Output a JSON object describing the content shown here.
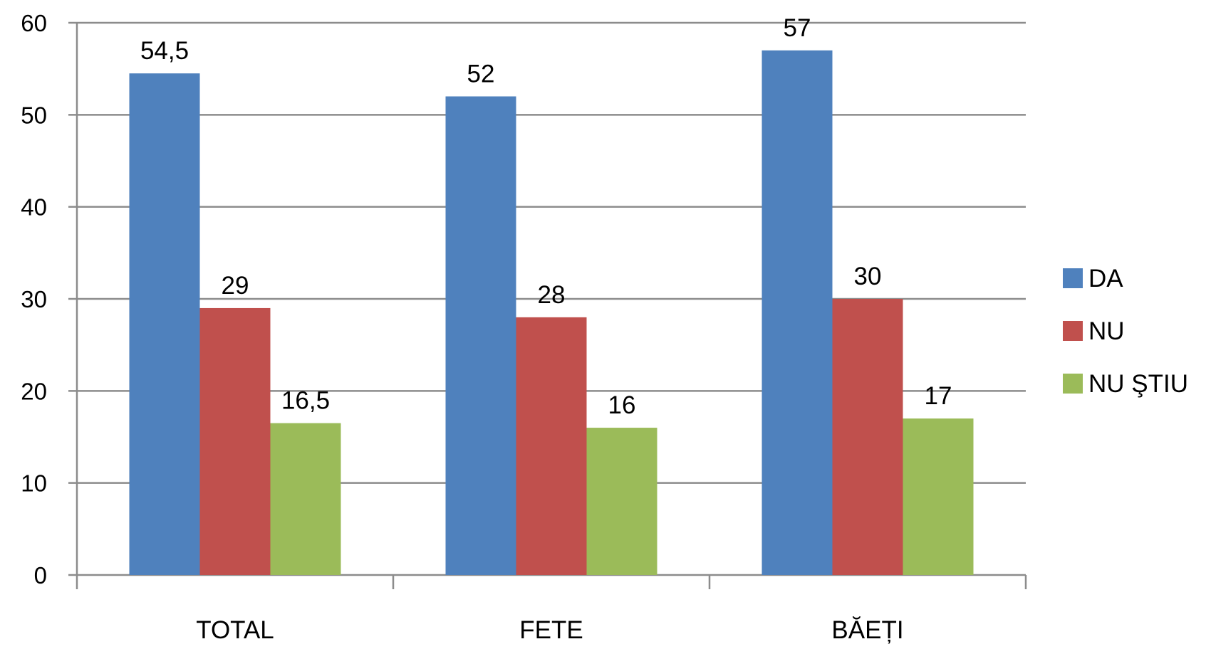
{
  "chart_data": {
    "type": "bar",
    "title": "",
    "xlabel": "",
    "ylabel": "",
    "categories": [
      "TOTAL",
      "FETE",
      "BĂEȚI"
    ],
    "series": [
      {
        "name": "DA",
        "values": [
          54.5,
          52,
          57
        ],
        "labels": [
          "54,5",
          "52",
          "57"
        ],
        "color": "#4F81BD"
      },
      {
        "name": "NU",
        "values": [
          29,
          28,
          30
        ],
        "labels": [
          "29",
          "28",
          "30"
        ],
        "color": "#C0504D"
      },
      {
        "name": "NU ŞTIU",
        "values": [
          16.5,
          16,
          17
        ],
        "labels": [
          "16,5",
          "16",
          "17"
        ],
        "color": "#9BBB59"
      }
    ],
    "ylim": [
      0,
      60
    ],
    "yticks": [
      0,
      10,
      20,
      30,
      40,
      50,
      60
    ],
    "grid": true,
    "legend_position": "right"
  }
}
